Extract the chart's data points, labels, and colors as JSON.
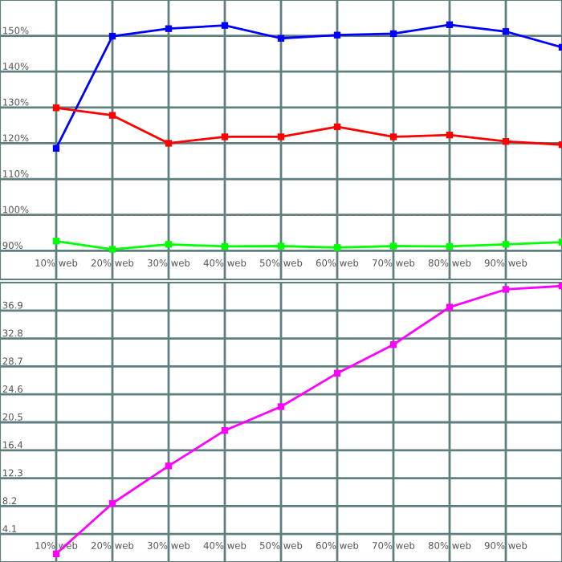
{
  "chart_data": [
    {
      "type": "line",
      "x": [
        10,
        20,
        30,
        40,
        50,
        60,
        70,
        80,
        90,
        100
      ],
      "series": [
        {
          "color": "#0000ff",
          "values": [
            118.6,
            149.9,
            152.0,
            152.9,
            149.3,
            150.2,
            150.6,
            153.1,
            151.2,
            146.8
          ]
        },
        {
          "color": "#ff0000",
          "values": [
            129.9,
            127.8,
            120.0,
            121.8,
            121.8,
            124.6,
            121.8,
            122.3,
            120.5,
            119.6
          ]
        },
        {
          "color": "#00ff00",
          "values": [
            92.7,
            90.4,
            91.8,
            91.2,
            91.3,
            90.9,
            91.3,
            91.2,
            91.8,
            92.4
          ]
        }
      ],
      "xlim": [
        0,
        100
      ],
      "xticks": [
        {
          "value": 10,
          "label": "10% web"
        },
        {
          "value": 20,
          "label": "20% web"
        },
        {
          "value": 30,
          "label": "30% web"
        },
        {
          "value": 40,
          "label": "40% web"
        },
        {
          "value": 50,
          "label": "50% web"
        },
        {
          "value": 60,
          "label": "60% web"
        },
        {
          "value": 70,
          "label": "70% web"
        },
        {
          "value": 80,
          "label": "80% web"
        },
        {
          "value": 90,
          "label": "90% web"
        }
      ],
      "ylim": [
        82,
        160
      ],
      "yticks": [
        {
          "value": 90,
          "label": "90%"
        },
        {
          "value": 100,
          "label": "100%"
        },
        {
          "value": 110,
          "label": "110%"
        },
        {
          "value": 120,
          "label": "120%"
        },
        {
          "value": 130,
          "label": "130%"
        },
        {
          "value": 140,
          "label": "140%"
        },
        {
          "value": 150,
          "label": "150%"
        }
      ],
      "ref_lines": [
        {
          "axis": "y",
          "value": 100,
          "color": "#808080",
          "line_style": "dotted"
        }
      ],
      "grid": true,
      "marker": "square",
      "line_style": "solid"
    },
    {
      "type": "line",
      "x": [
        10,
        20,
        30,
        40,
        50,
        60,
        70,
        80,
        90,
        100
      ],
      "series": [
        {
          "color": "#ff00ff",
          "values": [
            1.2,
            8.6,
            14.1,
            19.3,
            22.8,
            27.7,
            31.9,
            37.4,
            40.0,
            40.5
          ]
        }
      ],
      "xlim": [
        0,
        100
      ],
      "xticks": [
        {
          "value": 10,
          "label": "10% web"
        },
        {
          "value": 20,
          "label": "20% web"
        },
        {
          "value": 30,
          "label": "30% web"
        },
        {
          "value": 40,
          "label": "40% web"
        },
        {
          "value": 50,
          "label": "50% web"
        },
        {
          "value": 60,
          "label": "60% web"
        },
        {
          "value": 70,
          "label": "70% web"
        },
        {
          "value": 80,
          "label": "80% web"
        },
        {
          "value": 90,
          "label": "90% web"
        }
      ],
      "ylim": [
        0,
        41
      ],
      "yticks": [
        4.1,
        8.2,
        12.3,
        16.4,
        20.5,
        24.6,
        28.7,
        32.8,
        36.9
      ],
      "grid": true,
      "marker": "square",
      "line_style": "solid"
    }
  ]
}
